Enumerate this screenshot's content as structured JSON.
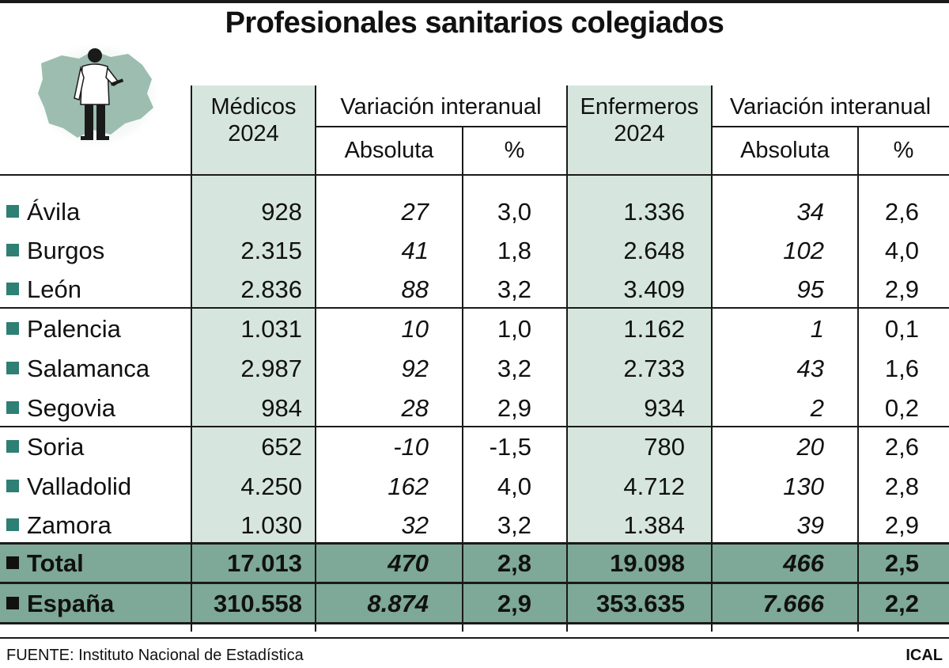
{
  "title": "Profesionales sanitarios colegiados",
  "icon_name": "doctor-map-icon",
  "headers": {
    "medicos": [
      "Médicos",
      "2024"
    ],
    "var1": "Variación interanual",
    "enfermeros": [
      "Enfermeros",
      "2024"
    ],
    "var2": "Variación interanual",
    "abs": "Absoluta",
    "pct": "%"
  },
  "colors": {
    "bullet": "#2e7f74",
    "highlight": "#d6e6de",
    "total_band": "#7ea898"
  },
  "chart_data": {
    "type": "table",
    "title": "Profesionales sanitarios colegiados",
    "columns": [
      "Médicos 2024",
      "Variación interanual Absoluta",
      "Variación interanual %",
      "Enfermeros 2024",
      "Variación interanual Absoluta",
      "Variación interanual %"
    ],
    "rows": [
      {
        "name": "Ávila",
        "values": [
          "928",
          "27",
          "3,0",
          "1.336",
          "34",
          "2,6"
        ]
      },
      {
        "name": "Burgos",
        "values": [
          "2.315",
          "41",
          "1,8",
          "2.648",
          "102",
          "4,0"
        ]
      },
      {
        "name": "León",
        "values": [
          "2.836",
          "88",
          "3,2",
          "3.409",
          "95",
          "2,9"
        ]
      },
      {
        "name": "Palencia",
        "values": [
          "1.031",
          "10",
          "1,0",
          "1.162",
          "1",
          "0,1"
        ]
      },
      {
        "name": "Salamanca",
        "values": [
          "2.987",
          "92",
          "3,2",
          "2.733",
          "43",
          "1,6"
        ]
      },
      {
        "name": "Segovia",
        "values": [
          "984",
          "28",
          "2,9",
          "934",
          "2",
          "0,2"
        ]
      },
      {
        "name": "Soria",
        "values": [
          "652",
          "-10",
          "-1,5",
          "780",
          "20",
          "2,6"
        ]
      },
      {
        "name": "Valladolid",
        "values": [
          "4.250",
          "162",
          "4,0",
          "4.712",
          "130",
          "2,8"
        ]
      },
      {
        "name": "Zamora",
        "values": [
          "1.030",
          "32",
          "3,2",
          "1.384",
          "39",
          "2,9"
        ]
      }
    ],
    "totals": [
      {
        "name": "Total",
        "values": [
          "17.013",
          "470",
          "2,8",
          "19.098",
          "466",
          "2,5"
        ]
      },
      {
        "name": "España",
        "values": [
          "310.558",
          "8.874",
          "2,9",
          "353.635",
          "7.666",
          "2,2"
        ]
      }
    ]
  },
  "footer": {
    "source": "FUENTE: Instituto Nacional de Estadística",
    "credit": "ICAL"
  }
}
